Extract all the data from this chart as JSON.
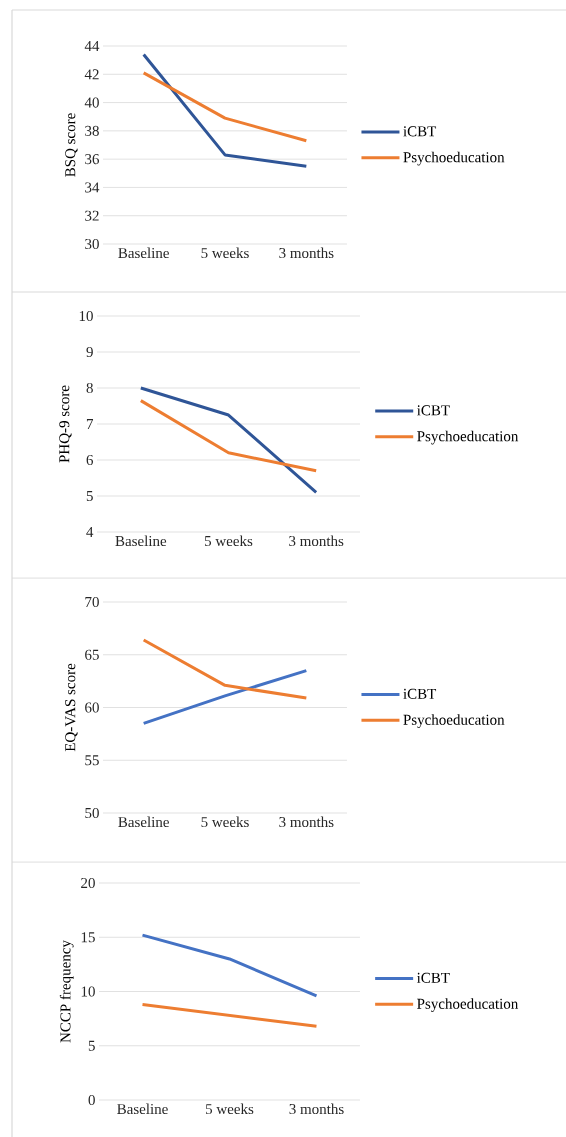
{
  "chart_data": [
    {
      "type": "line",
      "ylabel": "BSQ score",
      "categories": [
        "Baseline",
        "5 weeks",
        "3 months"
      ],
      "ylim": [
        30,
        44
      ],
      "yticks": [
        30,
        32,
        34,
        36,
        38,
        40,
        42,
        44
      ],
      "grid": "y",
      "legend": "right",
      "series": [
        {
          "name": "iCBT",
          "color": "#2f5597",
          "values": [
            43.4,
            36.3,
            35.5
          ]
        },
        {
          "name": "Psychoeducation",
          "color": "#ed7d31",
          "values": [
            42.1,
            38.9,
            37.3
          ]
        }
      ]
    },
    {
      "type": "line",
      "ylabel": "PHQ-9 score",
      "categories": [
        "Baseline",
        "5 weeks",
        "3 months"
      ],
      "ylim": [
        4,
        10
      ],
      "yticks": [
        4,
        5,
        6,
        7,
        8,
        9,
        10
      ],
      "grid": "y",
      "legend": "right",
      "series": [
        {
          "name": "iCBT",
          "color": "#2f5597",
          "values": [
            8.0,
            7.25,
            5.1
          ]
        },
        {
          "name": "Psychoeducation",
          "color": "#ed7d31",
          "values": [
            7.65,
            6.2,
            5.7
          ]
        }
      ]
    },
    {
      "type": "line",
      "ylabel": "EQ-VAS score",
      "categories": [
        "Baseline",
        "5 weeks",
        "3 months"
      ],
      "ylim": [
        50,
        70
      ],
      "yticks": [
        50,
        55,
        60,
        65,
        70
      ],
      "grid": "y",
      "legend": "right",
      "series": [
        {
          "name": "iCBT",
          "color": "#4472c4",
          "values": [
            58.5,
            61.1,
            63.5
          ]
        },
        {
          "name": "Psychoeducation",
          "color": "#ed7d31",
          "values": [
            66.4,
            62.1,
            60.9
          ]
        }
      ]
    },
    {
      "type": "line",
      "ylabel": "NCCP frequency",
      "categories": [
        "Baseline",
        "5 weeks",
        "3 months"
      ],
      "ylim": [
        0,
        20
      ],
      "yticks": [
        0,
        5,
        10,
        15,
        20
      ],
      "grid": "y",
      "legend": "right",
      "series": [
        {
          "name": "iCBT",
          "color": "#4472c4",
          "values": [
            15.2,
            13.0,
            9.6
          ]
        },
        {
          "name": "Psychoeducation",
          "color": "#ed7d31",
          "values": [
            8.8,
            7.8,
            6.8
          ]
        }
      ]
    }
  ]
}
